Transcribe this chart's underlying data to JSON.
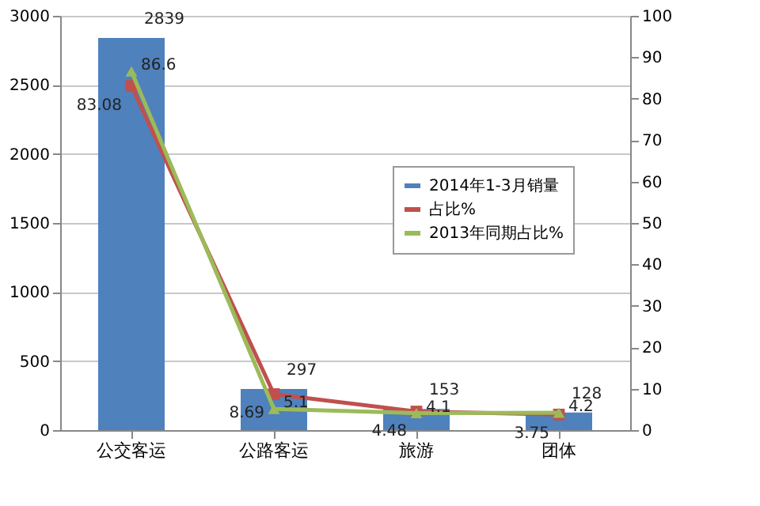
{
  "chart_data": {
    "type": "bar",
    "categories": [
      "公交客运",
      "公路客运",
      "旅游",
      "团体"
    ],
    "series": [
      {
        "name": "2014年1-3月销量",
        "color": "#4f81bd",
        "values": [
          2839,
          297,
          153,
          128
        ]
      },
      {
        "name": "占比%",
        "type": "line",
        "axis": "y2",
        "color": "#c0504d",
        "marker": "square",
        "values": [
          83.08,
          8.69,
          4.48,
          3.75
        ]
      },
      {
        "name": "2013年同期占比%",
        "type": "line",
        "axis": "y2",
        "color": "#9bbb59",
        "marker": "triangle",
        "values": [
          86.6,
          5.1,
          4.1,
          4.2
        ]
      }
    ],
    "ylim": [
      0,
      3000
    ],
    "yticks": [
      0,
      500,
      1000,
      1500,
      2000,
      2500,
      3000
    ],
    "y2lim": [
      0,
      100
    ],
    "y2ticks": [
      0,
      10,
      20,
      30,
      40,
      50,
      60,
      70,
      80,
      90,
      100
    ],
    "grid": "y",
    "legend": "right",
    "data_labels": true
  }
}
